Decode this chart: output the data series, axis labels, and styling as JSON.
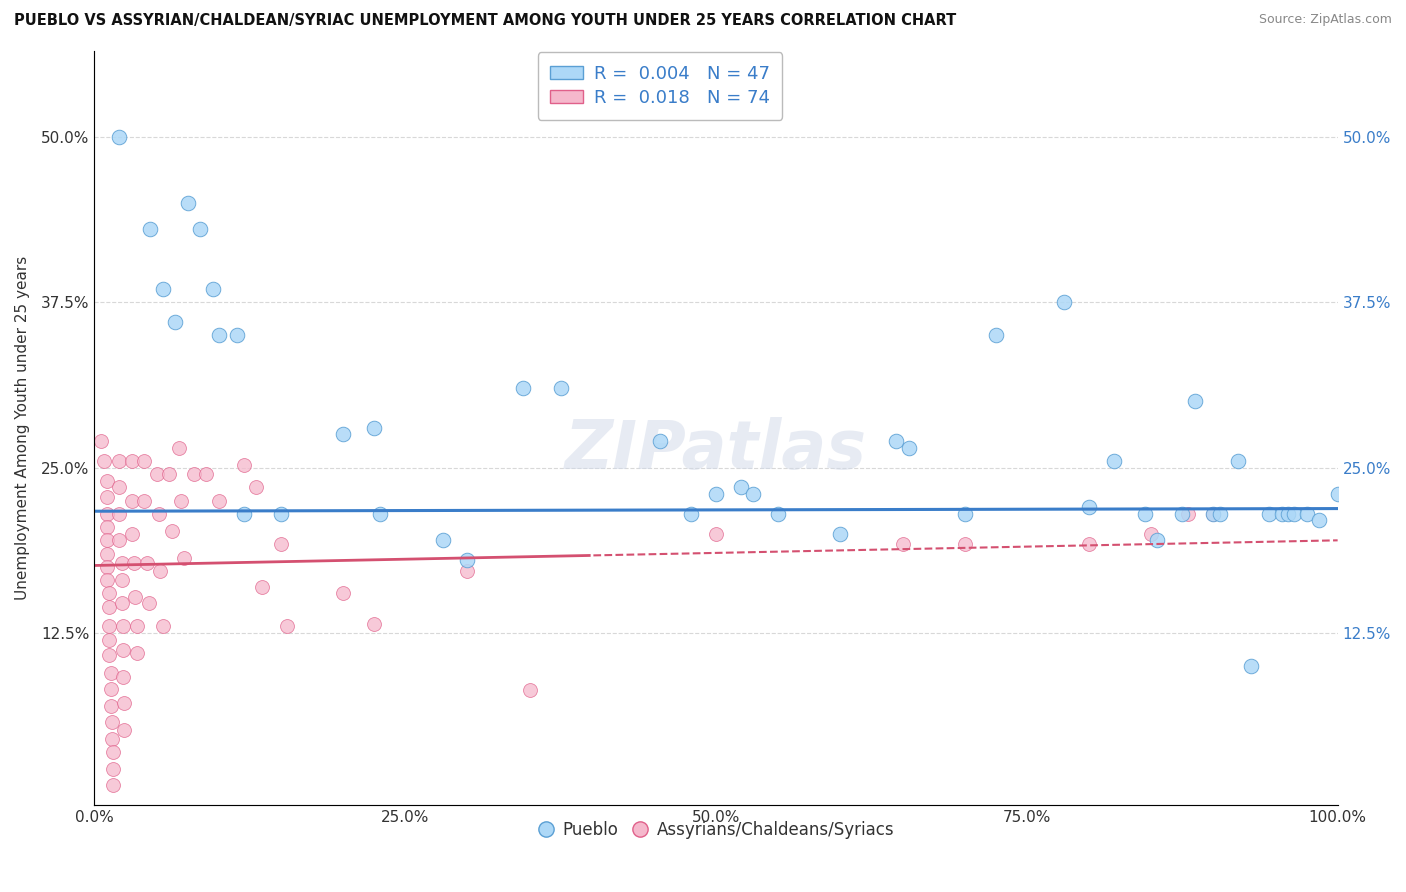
{
  "title": "PUEBLO VS ASSYRIAN/CHALDEAN/SYRIAC UNEMPLOYMENT AMONG YOUTH UNDER 25 YEARS CORRELATION CHART",
  "source": "Source: ZipAtlas.com",
  "ylabel": "Unemployment Among Youth under 25 years",
  "xlim": [
    0.0,
    1.0
  ],
  "ylim": [
    -0.005,
    0.565
  ],
  "xticks": [
    0.0,
    0.25,
    0.5,
    0.75,
    1.0
  ],
  "xticklabels": [
    "0.0%",
    "25.0%",
    "50.0%",
    "75.0%",
    "100.0%"
  ],
  "yticks": [
    0.0,
    0.125,
    0.25,
    0.375,
    0.5
  ],
  "yticklabels": [
    "",
    "12.5%",
    "25.0%",
    "37.5%",
    "50.0%"
  ],
  "legend_blue_label": "Pueblo",
  "legend_pink_label": "Assyrians/Chaldeans/Syriacs",
  "blue_R": "0.004",
  "blue_N": "47",
  "pink_R": "0.018",
  "pink_N": "74",
  "blue_dot_color": "#add8f7",
  "pink_dot_color": "#f5b8cc",
  "blue_edge_color": "#5a9fd4",
  "pink_edge_color": "#e0608a",
  "blue_line_color": "#3a7dc9",
  "pink_line_color": "#d45070",
  "blue_line_y": 0.218,
  "pink_line_start_y": 0.176,
  "pink_line_end_y": 0.195,
  "blue_scatter": [
    [
      0.02,
      0.5
    ],
    [
      0.045,
      0.43
    ],
    [
      0.055,
      0.385
    ],
    [
      0.065,
      0.36
    ],
    [
      0.075,
      0.45
    ],
    [
      0.085,
      0.43
    ],
    [
      0.095,
      0.385
    ],
    [
      0.1,
      0.35
    ],
    [
      0.115,
      0.35
    ],
    [
      0.12,
      0.215
    ],
    [
      0.15,
      0.215
    ],
    [
      0.2,
      0.275
    ],
    [
      0.225,
      0.28
    ],
    [
      0.23,
      0.215
    ],
    [
      0.28,
      0.195
    ],
    [
      0.3,
      0.18
    ],
    [
      0.345,
      0.31
    ],
    [
      0.375,
      0.31
    ],
    [
      0.455,
      0.27
    ],
    [
      0.48,
      0.215
    ],
    [
      0.5,
      0.23
    ],
    [
      0.52,
      0.235
    ],
    [
      0.53,
      0.23
    ],
    [
      0.55,
      0.215
    ],
    [
      0.6,
      0.2
    ],
    [
      0.645,
      0.27
    ],
    [
      0.655,
      0.265
    ],
    [
      0.7,
      0.215
    ],
    [
      0.725,
      0.35
    ],
    [
      0.78,
      0.375
    ],
    [
      0.8,
      0.22
    ],
    [
      0.82,
      0.255
    ],
    [
      0.845,
      0.215
    ],
    [
      0.855,
      0.195
    ],
    [
      0.875,
      0.215
    ],
    [
      0.885,
      0.3
    ],
    [
      0.9,
      0.215
    ],
    [
      0.905,
      0.215
    ],
    [
      0.92,
      0.255
    ],
    [
      0.93,
      0.1
    ],
    [
      0.945,
      0.215
    ],
    [
      0.955,
      0.215
    ],
    [
      0.96,
      0.215
    ],
    [
      0.965,
      0.215
    ],
    [
      0.975,
      0.215
    ],
    [
      0.985,
      0.21
    ],
    [
      1.0,
      0.23
    ]
  ],
  "pink_scatter": [
    [
      0.005,
      0.27
    ],
    [
      0.008,
      0.255
    ],
    [
      0.01,
      0.24
    ],
    [
      0.01,
      0.228
    ],
    [
      0.01,
      0.215
    ],
    [
      0.01,
      0.205
    ],
    [
      0.01,
      0.195
    ],
    [
      0.01,
      0.185
    ],
    [
      0.01,
      0.175
    ],
    [
      0.01,
      0.165
    ],
    [
      0.012,
      0.155
    ],
    [
      0.012,
      0.145
    ],
    [
      0.012,
      0.13
    ],
    [
      0.012,
      0.12
    ],
    [
      0.012,
      0.108
    ],
    [
      0.013,
      0.095
    ],
    [
      0.013,
      0.083
    ],
    [
      0.013,
      0.07
    ],
    [
      0.014,
      0.058
    ],
    [
      0.014,
      0.045
    ],
    [
      0.015,
      0.035
    ],
    [
      0.015,
      0.022
    ],
    [
      0.015,
      0.01
    ],
    [
      0.02,
      0.255
    ],
    [
      0.02,
      0.235
    ],
    [
      0.02,
      0.215
    ],
    [
      0.02,
      0.195
    ],
    [
      0.022,
      0.178
    ],
    [
      0.022,
      0.165
    ],
    [
      0.022,
      0.148
    ],
    [
      0.023,
      0.13
    ],
    [
      0.023,
      0.112
    ],
    [
      0.023,
      0.092
    ],
    [
      0.024,
      0.072
    ],
    [
      0.024,
      0.052
    ],
    [
      0.03,
      0.255
    ],
    [
      0.03,
      0.225
    ],
    [
      0.03,
      0.2
    ],
    [
      0.032,
      0.178
    ],
    [
      0.033,
      0.152
    ],
    [
      0.034,
      0.13
    ],
    [
      0.034,
      0.11
    ],
    [
      0.04,
      0.255
    ],
    [
      0.04,
      0.225
    ],
    [
      0.042,
      0.178
    ],
    [
      0.044,
      0.148
    ],
    [
      0.05,
      0.245
    ],
    [
      0.052,
      0.215
    ],
    [
      0.053,
      0.172
    ],
    [
      0.055,
      0.13
    ],
    [
      0.06,
      0.245
    ],
    [
      0.062,
      0.202
    ],
    [
      0.068,
      0.265
    ],
    [
      0.07,
      0.225
    ],
    [
      0.072,
      0.182
    ],
    [
      0.08,
      0.245
    ],
    [
      0.09,
      0.245
    ],
    [
      0.1,
      0.225
    ],
    [
      0.12,
      0.252
    ],
    [
      0.13,
      0.235
    ],
    [
      0.135,
      0.16
    ],
    [
      0.15,
      0.192
    ],
    [
      0.155,
      0.13
    ],
    [
      0.2,
      0.155
    ],
    [
      0.225,
      0.132
    ],
    [
      0.3,
      0.172
    ],
    [
      0.35,
      0.082
    ],
    [
      0.5,
      0.2
    ],
    [
      0.65,
      0.192
    ],
    [
      0.7,
      0.192
    ],
    [
      0.8,
      0.192
    ],
    [
      0.85,
      0.2
    ],
    [
      0.88,
      0.215
    ],
    [
      0.9,
      0.215
    ]
  ],
  "watermark": "ZIPatlas",
  "background_color": "#ffffff",
  "grid_color": "#c8c8c8"
}
